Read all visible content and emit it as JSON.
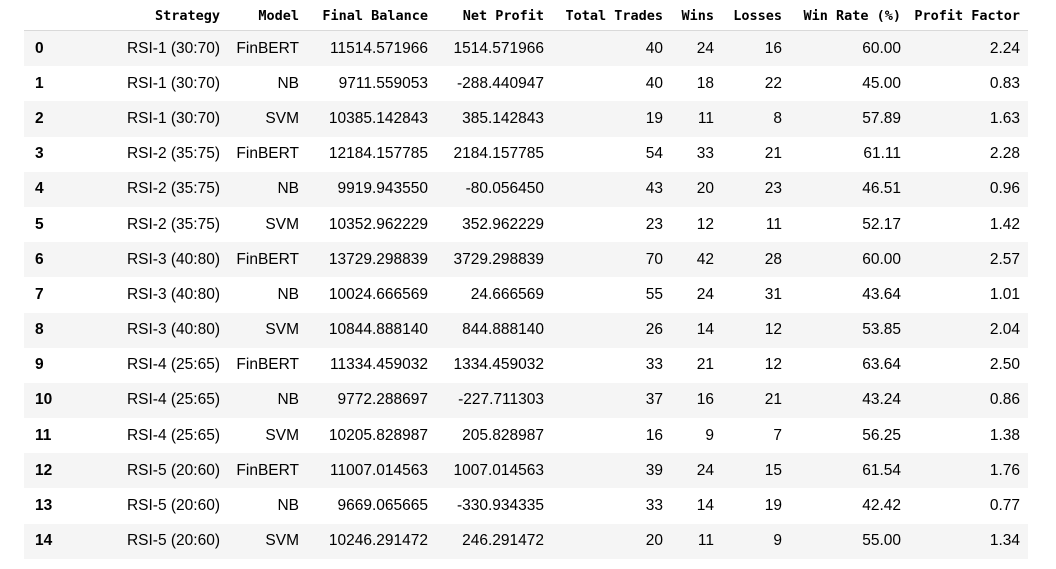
{
  "dataframe": {
    "columns": [
      "",
      "Strategy",
      "Model",
      "Final Balance",
      "Net Profit",
      "Total Trades",
      "Wins",
      "Losses",
      "Win Rate (%)",
      "Profit Factor"
    ],
    "rows": [
      [
        "0",
        "RSI-1 (30:70)",
        "FinBERT",
        "11514.571966",
        "1514.571966",
        "40",
        "24",
        "16",
        "60.00",
        "2.24"
      ],
      [
        "1",
        "RSI-1 (30:70)",
        "NB",
        "9711.559053",
        "-288.440947",
        "40",
        "18",
        "22",
        "45.00",
        "0.83"
      ],
      [
        "2",
        "RSI-1 (30:70)",
        "SVM",
        "10385.142843",
        "385.142843",
        "19",
        "11",
        "8",
        "57.89",
        "1.63"
      ],
      [
        "3",
        "RSI-2 (35:75)",
        "FinBERT",
        "12184.157785",
        "2184.157785",
        "54",
        "33",
        "21",
        "61.11",
        "2.28"
      ],
      [
        "4",
        "RSI-2 (35:75)",
        "NB",
        "9919.943550",
        "-80.056450",
        "43",
        "20",
        "23",
        "46.51",
        "0.96"
      ],
      [
        "5",
        "RSI-2 (35:75)",
        "SVM",
        "10352.962229",
        "352.962229",
        "23",
        "12",
        "11",
        "52.17",
        "1.42"
      ],
      [
        "6",
        "RSI-3 (40:80)",
        "FinBERT",
        "13729.298839",
        "3729.298839",
        "70",
        "42",
        "28",
        "60.00",
        "2.57"
      ],
      [
        "7",
        "RSI-3 (40:80)",
        "NB",
        "10024.666569",
        "24.666569",
        "55",
        "24",
        "31",
        "43.64",
        "1.01"
      ],
      [
        "8",
        "RSI-3 (40:80)",
        "SVM",
        "10844.888140",
        "844.888140",
        "26",
        "14",
        "12",
        "53.85",
        "2.04"
      ],
      [
        "9",
        "RSI-4 (25:65)",
        "FinBERT",
        "11334.459032",
        "1334.459032",
        "33",
        "21",
        "12",
        "63.64",
        "2.50"
      ],
      [
        "10",
        "RSI-4 (25:65)",
        "NB",
        "9772.288697",
        "-227.711303",
        "37",
        "16",
        "21",
        "43.24",
        "0.86"
      ],
      [
        "11",
        "RSI-4 (25:65)",
        "SVM",
        "10205.828987",
        "205.828987",
        "16",
        "9",
        "7",
        "56.25",
        "1.38"
      ],
      [
        "12",
        "RSI-5 (20:60)",
        "FinBERT",
        "11007.014563",
        "1007.014563",
        "39",
        "24",
        "15",
        "61.54",
        "1.76"
      ],
      [
        "13",
        "RSI-5 (20:60)",
        "NB",
        "9669.065665",
        "-330.934335",
        "33",
        "14",
        "19",
        "42.42",
        "0.77"
      ],
      [
        "14",
        "RSI-5 (20:60)",
        "SVM",
        "10246.291472",
        "246.291472",
        "20",
        "11",
        "9",
        "55.00",
        "1.34"
      ]
    ]
  }
}
